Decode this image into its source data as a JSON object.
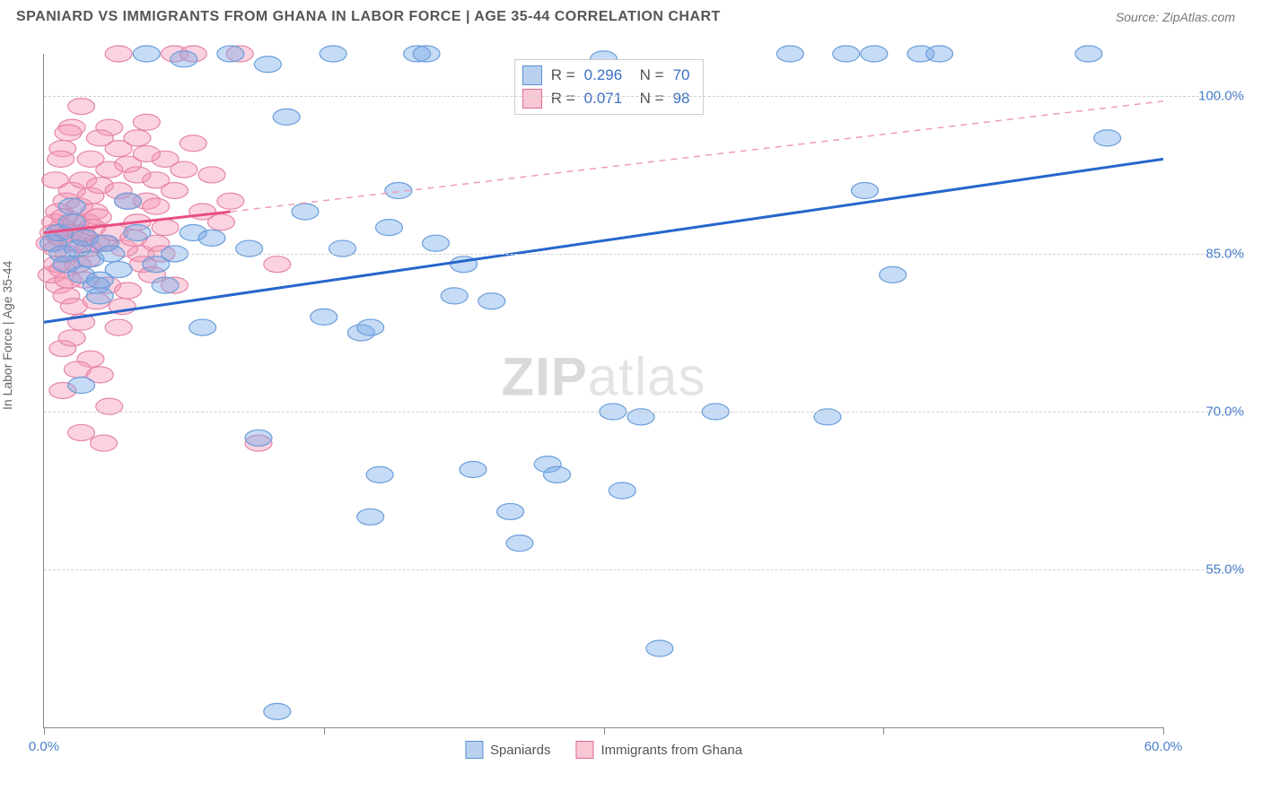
{
  "title": "SPANIARD VS IMMIGRANTS FROM GHANA IN LABOR FORCE | AGE 35-44 CORRELATION CHART",
  "source": "Source: ZipAtlas.com",
  "watermark_bold": "ZIP",
  "watermark_thin": "atlas",
  "chart": {
    "type": "scatter",
    "ylabel": "In Labor Force | Age 35-44",
    "background_color": "#ffffff",
    "grid_color": "#d0d0d0",
    "xlim": [
      0,
      60
    ],
    "ylim": [
      40,
      104
    ],
    "yticks": [
      55.0,
      70.0,
      85.0,
      100.0
    ],
    "ytick_labels": [
      "55.0%",
      "70.0%",
      "85.0%",
      "100.0%"
    ],
    "xticks": [
      0,
      15,
      30,
      45,
      60
    ],
    "xtick_labels_shown": {
      "0": "0.0%",
      "60": "60.0%"
    },
    "marker_radius": 9,
    "series": [
      {
        "name": "Spaniards",
        "color_fill": "rgba(120,170,230,0.42)",
        "color_stroke": "#6a9edb",
        "R": 0.296,
        "N": 70,
        "trend": {
          "x0": 0,
          "y0": 78.5,
          "x1": 60,
          "y1": 94.0,
          "color": "#2666cc",
          "width": 3
        },
        "points": [
          [
            0.5,
            86
          ],
          [
            0.8,
            87
          ],
          [
            1,
            85
          ],
          [
            1.2,
            84
          ],
          [
            1.5,
            88
          ],
          [
            1.8,
            85.5
          ],
          [
            2,
            83
          ],
          [
            2.2,
            86.5
          ],
          [
            2.5,
            84.5
          ],
          [
            2.8,
            82
          ],
          [
            3,
            81
          ],
          [
            3.3,
            86
          ],
          [
            3.6,
            85
          ],
          [
            4,
            83.5
          ],
          [
            4.5,
            90
          ],
          [
            1.5,
            89.5
          ],
          [
            5,
            87
          ],
          [
            2,
            72.5
          ],
          [
            3,
            82.5
          ],
          [
            5.5,
            104
          ],
          [
            6,
            84
          ],
          [
            6.5,
            82
          ],
          [
            7,
            85
          ],
          [
            7.5,
            103.5
          ],
          [
            8,
            87
          ],
          [
            8.5,
            78
          ],
          [
            9,
            86.5
          ],
          [
            10,
            104
          ],
          [
            11,
            85.5
          ],
          [
            11.5,
            67.5
          ],
          [
            12,
            103
          ],
          [
            12.5,
            41.5
          ],
          [
            13,
            98
          ],
          [
            14,
            89
          ],
          [
            15,
            79
          ],
          [
            15.5,
            104
          ],
          [
            16,
            85.5
          ],
          [
            17,
            77.5
          ],
          [
            17.5,
            78
          ],
          [
            17.5,
            60
          ],
          [
            18,
            64
          ],
          [
            18.5,
            87.5
          ],
          [
            19,
            91
          ],
          [
            20,
            104
          ],
          [
            20.5,
            104
          ],
          [
            21,
            86
          ],
          [
            22,
            81
          ],
          [
            22.5,
            84
          ],
          [
            23,
            64.5
          ],
          [
            24,
            80.5
          ],
          [
            25,
            60.5
          ],
          [
            25.5,
            57.5
          ],
          [
            27,
            65
          ],
          [
            27.5,
            64
          ],
          [
            30,
            103.5
          ],
          [
            30.5,
            70
          ],
          [
            31,
            62.5
          ],
          [
            32,
            69.5
          ],
          [
            33,
            47.5
          ],
          [
            36,
            70
          ],
          [
            40,
            104
          ],
          [
            42,
            69.5
          ],
          [
            43,
            104
          ],
          [
            44,
            91
          ],
          [
            44.5,
            104
          ],
          [
            45.5,
            83
          ],
          [
            47,
            104
          ],
          [
            48,
            104
          ],
          [
            56,
            104
          ],
          [
            57,
            96
          ]
        ]
      },
      {
        "name": "Immigrants from Ghana",
        "color_fill": "rgba(245,150,180,0.42)",
        "color_stroke": "#e585a8",
        "R": 0.071,
        "N": 98,
        "trend_solid": {
          "x0": 0,
          "y0": 87.0,
          "x1": 10,
          "y1": 89.0,
          "color": "#e84e85",
          "width": 3
        },
        "trend_dash": {
          "x0": 10,
          "y0": 89.0,
          "x1": 60,
          "y1": 99.5,
          "color": "#f09cb8",
          "dash": "7 6"
        },
        "points": [
          [
            0.3,
            86
          ],
          [
            0.5,
            87
          ],
          [
            0.6,
            88
          ],
          [
            0.7,
            85.5
          ],
          [
            0.8,
            89
          ],
          [
            0.9,
            86.5
          ],
          [
            1.0,
            87.5
          ],
          [
            1.1,
            88.5
          ],
          [
            1.2,
            90
          ],
          [
            1.3,
            85
          ],
          [
            1.4,
            87
          ],
          [
            1.5,
            91
          ],
          [
            1.6,
            86
          ],
          [
            1.7,
            88
          ],
          [
            1.8,
            84
          ],
          [
            1.9,
            89.5
          ],
          [
            2.0,
            87
          ],
          [
            2.1,
            92
          ],
          [
            2.2,
            86.5
          ],
          [
            2.3,
            88
          ],
          [
            2.4,
            85.5
          ],
          [
            2.5,
            90.5
          ],
          [
            2.6,
            87.5
          ],
          [
            2.7,
            89
          ],
          [
            2.8,
            86
          ],
          [
            2.9,
            88.5
          ],
          [
            3.0,
            91.5
          ],
          [
            1.0,
            76
          ],
          [
            1.5,
            77
          ],
          [
            2.0,
            78.5
          ],
          [
            2.5,
            75
          ],
          [
            0.8,
            82
          ],
          [
            1.2,
            81
          ],
          [
            1.6,
            80
          ],
          [
            2.2,
            82.5
          ],
          [
            2.8,
            80.5
          ],
          [
            3.4,
            82
          ],
          [
            1.0,
            72
          ],
          [
            1.8,
            74
          ],
          [
            3.0,
            73.5
          ],
          [
            2.0,
            68
          ],
          [
            3.2,
            67
          ],
          [
            3.5,
            70.5
          ],
          [
            4.0,
            78
          ],
          [
            4.2,
            80
          ],
          [
            4.5,
            81.5
          ],
          [
            5.0,
            88
          ],
          [
            5.2,
            85
          ],
          [
            5.5,
            90
          ],
          [
            6.0,
            86
          ],
          [
            6.5,
            87.5
          ],
          [
            4.0,
            104
          ],
          [
            7.0,
            104
          ],
          [
            8.0,
            104
          ],
          [
            3.5,
            97
          ],
          [
            4.0,
            95
          ],
          [
            4.5,
            93.5
          ],
          [
            5.0,
            96
          ],
          [
            5.5,
            97.5
          ],
          [
            6.0,
            92
          ],
          [
            6.5,
            94
          ],
          [
            7.0,
            91
          ],
          [
            7.5,
            93
          ],
          [
            8.0,
            95.5
          ],
          [
            8.5,
            89
          ],
          [
            9.0,
            92.5
          ],
          [
            9.5,
            88
          ],
          [
            10.0,
            90
          ],
          [
            10.5,
            104
          ],
          [
            2.5,
            94
          ],
          [
            3.0,
            96
          ],
          [
            3.5,
            93
          ],
          [
            4.0,
            91
          ],
          [
            4.5,
            90
          ],
          [
            5.0,
            92.5
          ],
          [
            5.5,
            94.5
          ],
          [
            6.0,
            89.5
          ],
          [
            1.0,
            95
          ],
          [
            1.5,
            97
          ],
          [
            2.0,
            99
          ],
          [
            0.6,
            92
          ],
          [
            0.9,
            94
          ],
          [
            1.3,
            96.5
          ],
          [
            3.2,
            86
          ],
          [
            3.8,
            87
          ],
          [
            4.3,
            85.5
          ],
          [
            4.8,
            86.5
          ],
          [
            5.3,
            84
          ],
          [
            5.8,
            83
          ],
          [
            6.3,
            85
          ],
          [
            7.0,
            82
          ],
          [
            2.3,
            84.5
          ],
          [
            11.5,
            67
          ],
          [
            12.5,
            84
          ],
          [
            0.4,
            83
          ],
          [
            0.7,
            84
          ],
          [
            1.0,
            83.5
          ],
          [
            1.3,
            82.5
          ]
        ]
      }
    ],
    "bottom_legend": [
      {
        "label": "Spaniards",
        "swatch": "blue"
      },
      {
        "label": "Immigrants from Ghana",
        "swatch": "pink"
      }
    ]
  }
}
